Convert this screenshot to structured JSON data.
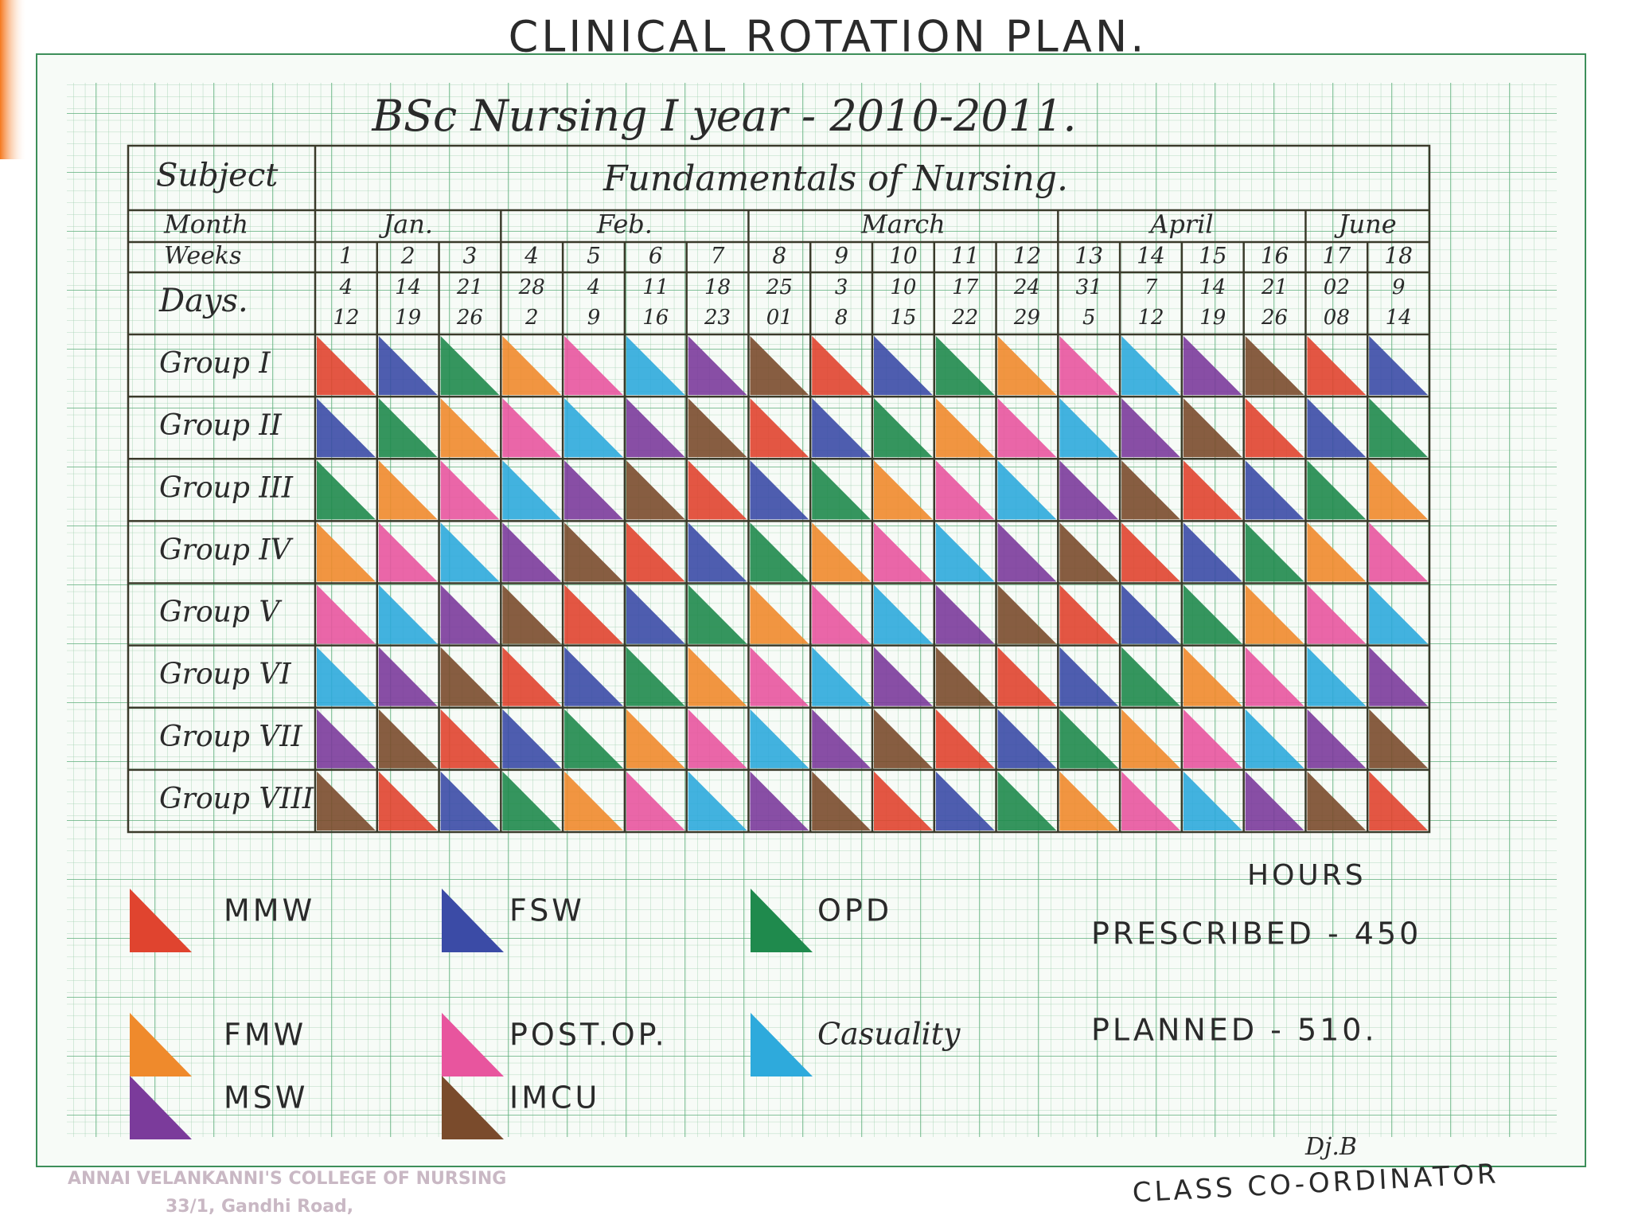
{
  "header": {
    "title": "CLINICAL ROTATION PLAN.",
    "subtitle": "BSc Nursing I year - 2010-2011."
  },
  "table": {
    "subject_label": "Subject",
    "subject": "Fundamentals of Nursing.",
    "month_label": "Month",
    "weeks_label": "Weeks",
    "days_label": "Days.",
    "months": [
      {
        "name": "Jan.",
        "weeks": [
          {
            "week": "1",
            "from": "4",
            "to": "12"
          },
          {
            "week": "2",
            "from": "14",
            "to": "19"
          },
          {
            "week": "3",
            "from": "21",
            "to": "26"
          }
        ]
      },
      {
        "name": "Feb.",
        "weeks": [
          {
            "week": "4",
            "from": "28",
            "to": "2"
          },
          {
            "week": "5",
            "from": "4",
            "to": "9"
          },
          {
            "week": "6",
            "from": "11",
            "to": "16"
          },
          {
            "week": "7",
            "from": "18",
            "to": "23"
          }
        ]
      },
      {
        "name": "March",
        "weeks": [
          {
            "week": "8",
            "from": "25",
            "to": "01"
          },
          {
            "week": "9",
            "from": "3",
            "to": "8"
          },
          {
            "week": "10",
            "from": "10",
            "to": "15"
          },
          {
            "week": "11",
            "from": "17",
            "to": "22"
          },
          {
            "week": "12",
            "from": "24",
            "to": "29"
          }
        ]
      },
      {
        "name": "April",
        "weeks": [
          {
            "week": "13",
            "from": "31",
            "to": "5"
          },
          {
            "week": "14",
            "from": "7",
            "to": "12"
          },
          {
            "week": "15",
            "from": "14",
            "to": "19"
          },
          {
            "week": "16",
            "from": "21",
            "to": "26"
          }
        ]
      },
      {
        "name": "June",
        "weeks": [
          {
            "week": "17",
            "from": "02",
            "to": "08"
          },
          {
            "week": "18",
            "from": "9",
            "to": "14"
          }
        ]
      }
    ],
    "groups": [
      {
        "label": "Group I",
        "cells": [
          "#e0442f",
          "#3b4ba6",
          "#1f8a4d",
          "#ef8a2c",
          "#e8559e",
          "#2eaadc",
          "#7b3b9b",
          "#7a4b2c",
          "#e0442f",
          "#3b4ba6",
          "#1f8a4d",
          "#ef8a2c",
          "#e8559e",
          "#2eaadc",
          "#7b3b9b",
          "#7a4b2c",
          "#e0442f",
          "#3b4ba6"
        ]
      },
      {
        "label": "Group II",
        "cells": [
          "#3b4ba6",
          "#1f8a4d",
          "#ef8a2c",
          "#e8559e",
          "#2eaadc",
          "#7b3b9b",
          "#7a4b2c",
          "#e0442f",
          "#3b4ba6",
          "#1f8a4d",
          "#ef8a2c",
          "#e8559e",
          "#2eaadc",
          "#7b3b9b",
          "#7a4b2c",
          "#e0442f",
          "#3b4ba6",
          "#1f8a4d"
        ]
      },
      {
        "label": "Group III",
        "cells": [
          "#1f8a4d",
          "#ef8a2c",
          "#e8559e",
          "#2eaadc",
          "#7b3b9b",
          "#7a4b2c",
          "#e0442f",
          "#3b4ba6",
          "#1f8a4d",
          "#ef8a2c",
          "#e8559e",
          "#2eaadc",
          "#7b3b9b",
          "#7a4b2c",
          "#e0442f",
          "#3b4ba6",
          "#1f8a4d",
          "#ef8a2c"
        ]
      },
      {
        "label": "Group IV",
        "cells": [
          "#ef8a2c",
          "#e8559e",
          "#2eaadc",
          "#7b3b9b",
          "#7a4b2c",
          "#e0442f",
          "#3b4ba6",
          "#1f8a4d",
          "#ef8a2c",
          "#e8559e",
          "#2eaadc",
          "#7b3b9b",
          "#7a4b2c",
          "#e0442f",
          "#3b4ba6",
          "#1f8a4d",
          "#ef8a2c",
          "#e8559e"
        ]
      },
      {
        "label": "Group V",
        "cells": [
          "#e8559e",
          "#2eaadc",
          "#7b3b9b",
          "#7a4b2c",
          "#e0442f",
          "#3b4ba6",
          "#1f8a4d",
          "#ef8a2c",
          "#e8559e",
          "#2eaadc",
          "#7b3b9b",
          "#7a4b2c",
          "#e0442f",
          "#3b4ba6",
          "#1f8a4d",
          "#ef8a2c",
          "#e8559e",
          "#2eaadc"
        ]
      },
      {
        "label": "Group VI",
        "cells": [
          "#2eaadc",
          "#7b3b9b",
          "#7a4b2c",
          "#e0442f",
          "#3b4ba6",
          "#1f8a4d",
          "#ef8a2c",
          "#e8559e",
          "#2eaadc",
          "#7b3b9b",
          "#7a4b2c",
          "#e0442f",
          "#3b4ba6",
          "#1f8a4d",
          "#ef8a2c",
          "#e8559e",
          "#2eaadc",
          "#7b3b9b"
        ]
      },
      {
        "label": "Group VII",
        "cells": [
          "#7b3b9b",
          "#7a4b2c",
          "#e0442f",
          "#3b4ba6",
          "#1f8a4d",
          "#ef8a2c",
          "#e8559e",
          "#2eaadc",
          "#7b3b9b",
          "#7a4b2c",
          "#e0442f",
          "#3b4ba6",
          "#1f8a4d",
          "#ef8a2c",
          "#e8559e",
          "#2eaadc",
          "#7b3b9b",
          "#7a4b2c"
        ]
      },
      {
        "label": "Group VIII",
        "cells": [
          "#7a4b2c",
          "#e0442f",
          "#3b4ba6",
          "#1f8a4d",
          "#ef8a2c",
          "#e8559e",
          "#2eaadc",
          "#7b3b9b",
          "#7a4b2c",
          "#e0442f",
          "#3b4ba6",
          "#1f8a4d",
          "#ef8a2c",
          "#e8559e",
          "#2eaadc",
          "#7b3b9b",
          "#7a4b2c",
          "#e0442f"
        ]
      }
    ]
  },
  "legend": [
    {
      "label": "MMW",
      "color": "#e0442f"
    },
    {
      "label": "FSW",
      "color": "#3b4ba6"
    },
    {
      "label": "OPD",
      "color": "#1f8a4d"
    },
    {
      "label": "FMW",
      "color": "#ef8a2c"
    },
    {
      "label": "POST.OP.",
      "color": "#e8559e"
    },
    {
      "label": "Casuality",
      "color": "#2eaadc"
    },
    {
      "label": "MSW",
      "color": "#7b3b9b"
    },
    {
      "label": "IMCU",
      "color": "#7a4b2c"
    }
  ],
  "hours": {
    "title": "HOURS",
    "rows": [
      "PRESCRIBED - 450",
      "PLANNED - 510."
    ]
  },
  "signature": {
    "initials": "Dj.B",
    "role": "CLASS CO-ORDINATOR"
  },
  "footer": {
    "college": "ANNAI VELANKANNI'S COLLEGE OF NURSING",
    "address": "33/1, Gandhi Road,"
  }
}
